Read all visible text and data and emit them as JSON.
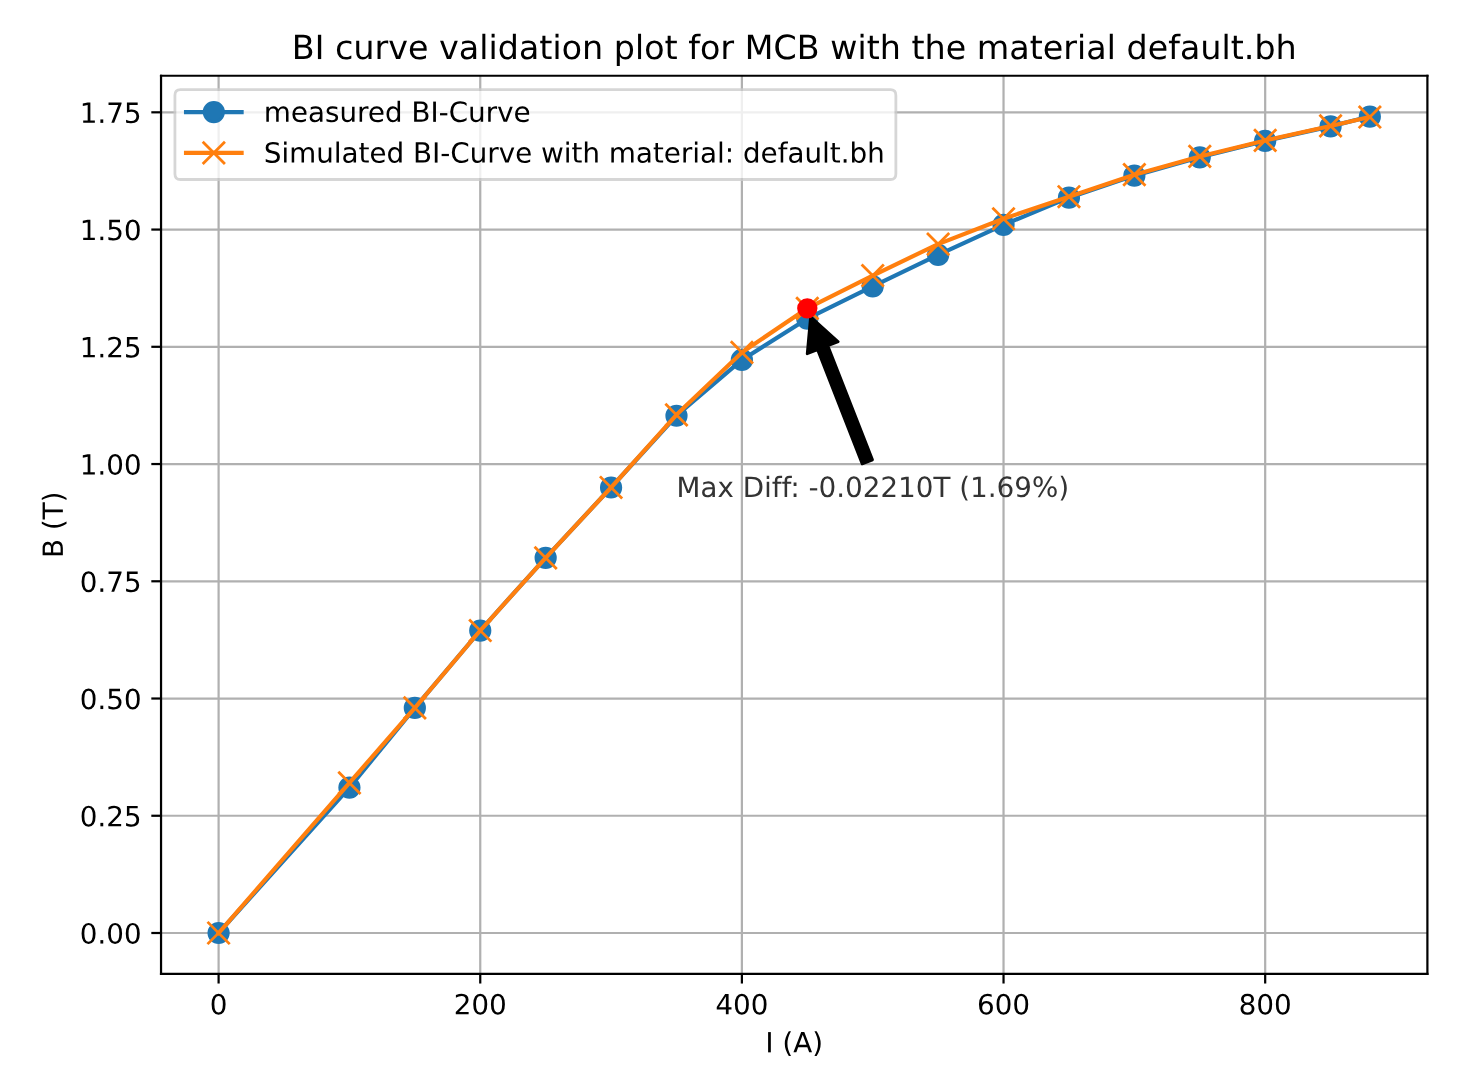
{
  "chart_data": {
    "type": "line",
    "title": "BI curve validation plot for MCB with the material default.bh",
    "xlabel": "I (A)",
    "ylabel": "B (T)",
    "x": [
      0,
      100,
      150,
      200,
      250,
      300,
      350,
      400,
      450,
      500,
      550,
      600,
      650,
      700,
      750,
      800,
      850,
      880
    ],
    "series": [
      {
        "name": "measured BI-Curve",
        "color": "#1f77b4",
        "marker": "circle",
        "values": [
          0,
          0.31,
          0.48,
          0.645,
          0.8,
          0.95,
          1.103,
          1.222,
          1.31,
          1.379,
          1.446,
          1.51,
          1.568,
          1.615,
          1.654,
          1.689,
          1.72,
          1.741
        ]
      },
      {
        "name": "Simulated BI-Curve with material: default.bh",
        "color": "#ff7f0e",
        "marker": "cross",
        "values": [
          0,
          0.32,
          0.48,
          0.645,
          0.8,
          0.95,
          1.105,
          1.238,
          1.332,
          1.402,
          1.469,
          1.523,
          1.57,
          1.617,
          1.656,
          1.69,
          1.721,
          1.74
        ]
      },
      {
        "type": "scatter",
        "color": "#ff0000",
        "marker": "circle",
        "x": [
          450
        ],
        "values": [
          1.332
        ]
      }
    ],
    "annotations": [
      "Max Diff: -0.02210T (1.69%)"
    ],
    "xlim": [
      -44,
      924
    ],
    "ylim": [
      -0.087,
      1.828
    ],
    "xticks": [
      0,
      200,
      400,
      600,
      800
    ],
    "yticks": [
      {
        "value": 0,
        "label": "0.00"
      },
      0.25,
      {
        "value": 0.5,
        "label": "0.50"
      },
      0.75,
      {
        "value": 1,
        "label": "1.00"
      },
      1.25,
      {
        "value": 1.5,
        "label": "1.50"
      },
      1.75
    ],
    "grid": true,
    "legend": "top left"
  }
}
